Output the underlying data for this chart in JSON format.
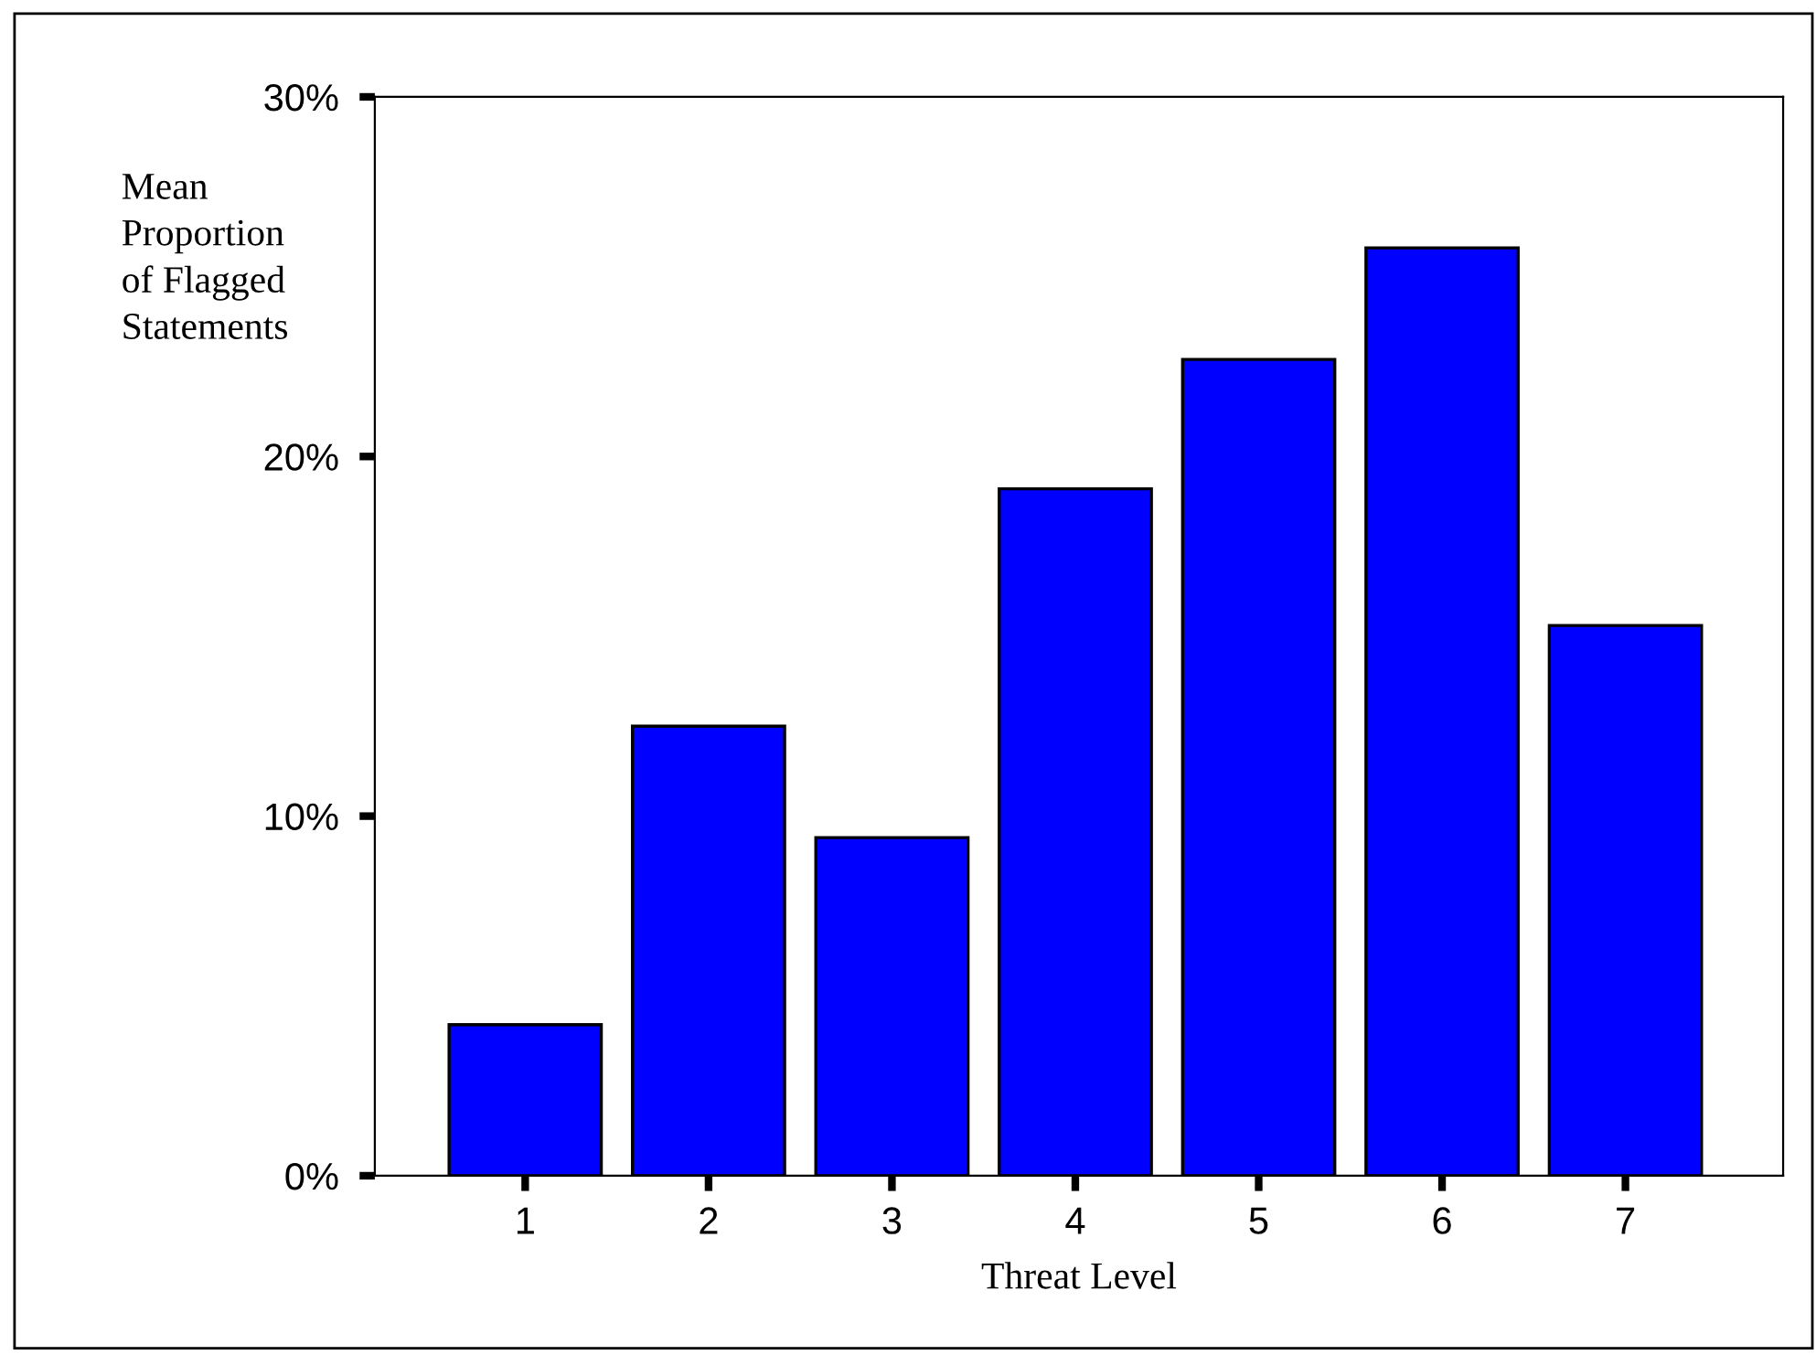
{
  "chart_data": {
    "type": "bar",
    "ylabel": "Mean\nProportion\nof Flagged\nStatements",
    "xlabel": "Threat Level",
    "categories": [
      "1",
      "2",
      "3",
      "4",
      "5",
      "6",
      "7"
    ],
    "values": [
      4.2,
      12.5,
      9.4,
      19.1,
      22.7,
      25.8,
      15.3
    ],
    "color": "#0000ff",
    "ylim": [
      0,
      30
    ],
    "yticks": [
      {
        "value": 0,
        "label": "0%"
      },
      {
        "value": 10,
        "label": "10%"
      },
      {
        "value": 20,
        "label": "20%"
      },
      {
        "value": 30,
        "label": "30%"
      }
    ],
    "grid": false,
    "legend": false
  }
}
